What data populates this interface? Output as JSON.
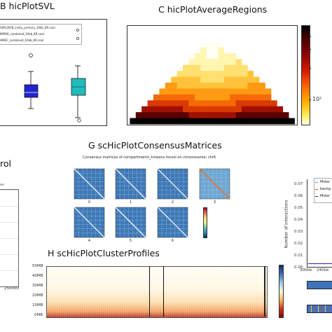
{
  "panels": {
    "B": {
      "title": "B  hicPlotSVL",
      "legend": [
        "GM12878_insitu_primary_10kb_KR.cool",
        "IMR90_combined_10kb_KR.cool",
        "HMEC_combined_10kb_KR.cool"
      ],
      "colors": [
        "#2020c8",
        "#20b8b8"
      ]
    },
    "C": {
      "title": "C  hicPlotAverageRegions",
      "colorbar_tick": "10²"
    },
    "F": {
      "title_fragment": "rol",
      "small_label": "se:",
      "tick": "250000"
    },
    "G": {
      "title": "G  scHicPlotConsensusMatrices",
      "subtitle": "Consensus matrices of compartments_kmeans.mcool on chromosome: chr6",
      "matrix_labels": [
        "0",
        "1",
        "2",
        "3",
        "4",
        "5",
        "6"
      ]
    },
    "H": {
      "title": "H  scHicPlotClusterProfiles",
      "y_ticks": [
        "50MB",
        "40MB",
        "30MB",
        "20MB",
        "10MB",
        "0MB"
      ]
    },
    "I": {
      "legend": [
        "Mster",
        "backg",
        "Mster"
      ],
      "y_ticks": [
        "0.07",
        "0.06",
        "0.05",
        "0.04",
        "0.03",
        "0.02",
        "0.01",
        "0.00"
      ],
      "y_label": "Number of interactions",
      "x_ticks": [
        "300kb",
        "240kb"
      ]
    }
  }
}
